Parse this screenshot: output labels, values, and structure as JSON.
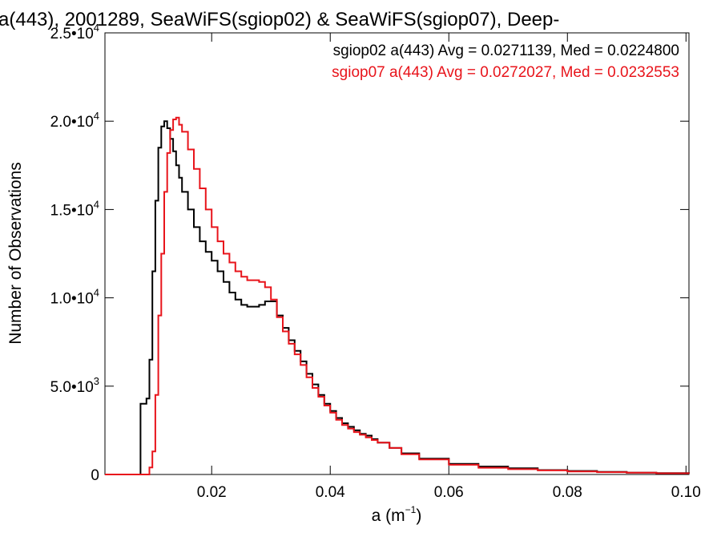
{
  "chart_data": {
    "type": "line",
    "title": "a(443), 2001289, SeaWiFS(sgiop02) & SeaWiFS(sgiop07), Deep-",
    "xlabel_base": "a (m",
    "xlabel_exp": "−1",
    "xlabel_close": ")",
    "ylabel": "Number of Observations",
    "xlim": [
      0.002,
      0.1005
    ],
    "ylim": [
      0,
      25000
    ],
    "x_ticks": [
      {
        "value": 0.02,
        "label": "0.02"
      },
      {
        "value": 0.04,
        "label": "0.04"
      },
      {
        "value": 0.06,
        "label": "0.06"
      },
      {
        "value": 0.08,
        "label": "0.08"
      },
      {
        "value": 0.1,
        "label": "0.10"
      }
    ],
    "y_ticks": [
      {
        "value": 0,
        "mantissa": "0",
        "exp": ""
      },
      {
        "value": 5000,
        "mantissa": "5.0•10",
        "exp": "3"
      },
      {
        "value": 10000,
        "mantissa": "1.0•10",
        "exp": "4"
      },
      {
        "value": 15000,
        "mantissa": "1.5•10",
        "exp": "4"
      },
      {
        "value": 20000,
        "mantissa": "2.0•10",
        "exp": "4"
      },
      {
        "value": 25000,
        "mantissa": "2.5•10",
        "exp": "4"
      }
    ],
    "grid": false,
    "legend_position": "top-right",
    "series": [
      {
        "name": "sgiop02",
        "legend_text": "sgiop02 a(443) Avg = 0.0271139, Med = 0.0224800",
        "color": "#000000",
        "x": [
          0.002,
          0.007,
          0.008,
          0.009,
          0.0095,
          0.01,
          0.0105,
          0.011,
          0.0115,
          0.012,
          0.0125,
          0.013,
          0.0135,
          0.014,
          0.0145,
          0.015,
          0.016,
          0.017,
          0.018,
          0.019,
          0.02,
          0.021,
          0.022,
          0.023,
          0.024,
          0.025,
          0.026,
          0.027,
          0.028,
          0.029,
          0.03,
          0.031,
          0.032,
          0.033,
          0.034,
          0.035,
          0.036,
          0.037,
          0.038,
          0.039,
          0.04,
          0.041,
          0.042,
          0.043,
          0.044,
          0.045,
          0.046,
          0.047,
          0.048,
          0.05,
          0.052,
          0.055,
          0.06,
          0.065,
          0.07,
          0.075,
          0.08,
          0.085,
          0.09,
          0.095,
          0.1005
        ],
        "y": [
          0,
          0,
          4000,
          4300,
          6500,
          11500,
          15500,
          18500,
          19700,
          20000,
          19600,
          19000,
          18300,
          17500,
          16800,
          16000,
          15000,
          14000,
          13200,
          12600,
          12100,
          11500,
          10900,
          10300,
          9900,
          9600,
          9500,
          9500,
          9600,
          9800,
          9800,
          9000,
          8300,
          7600,
          7000,
          6400,
          5700,
          5100,
          4500,
          4000,
          3600,
          3200,
          2900,
          2700,
          2500,
          2300,
          2200,
          2000,
          1800,
          1500,
          1200,
          900,
          600,
          450,
          350,
          250,
          200,
          150,
          100,
          80,
          50
        ]
      },
      {
        "name": "sgiop07",
        "legend_text": "sgiop07 a(443) Avg = 0.0272027, Med = 0.0232553",
        "color": "#e8141b",
        "x": [
          0.002,
          0.009,
          0.0095,
          0.01,
          0.0105,
          0.011,
          0.0115,
          0.012,
          0.0125,
          0.013,
          0.0135,
          0.014,
          0.0145,
          0.015,
          0.016,
          0.017,
          0.018,
          0.019,
          0.02,
          0.021,
          0.022,
          0.023,
          0.024,
          0.025,
          0.026,
          0.027,
          0.028,
          0.029,
          0.03,
          0.031,
          0.032,
          0.033,
          0.034,
          0.035,
          0.036,
          0.037,
          0.038,
          0.039,
          0.04,
          0.041,
          0.042,
          0.043,
          0.044,
          0.045,
          0.046,
          0.047,
          0.048,
          0.05,
          0.052,
          0.055,
          0.06,
          0.065,
          0.07,
          0.075,
          0.08,
          0.085,
          0.09,
          0.095,
          0.1005
        ],
        "y": [
          0,
          0,
          400,
          1300,
          4500,
          9000,
          12500,
          16000,
          18200,
          19500,
          20100,
          20200,
          19800,
          19400,
          18400,
          17300,
          16200,
          15000,
          14000,
          13200,
          12500,
          12000,
          11500,
          11200,
          11000,
          11000,
          10900,
          10600,
          9900,
          8900,
          8100,
          7400,
          6800,
          6200,
          5500,
          4900,
          4400,
          3900,
          3500,
          3100,
          2800,
          2600,
          2400,
          2250,
          2100,
          1950,
          1800,
          1500,
          1150,
          850,
          550,
          380,
          300,
          230,
          170,
          130,
          100,
          70,
          50
        ]
      }
    ]
  }
}
